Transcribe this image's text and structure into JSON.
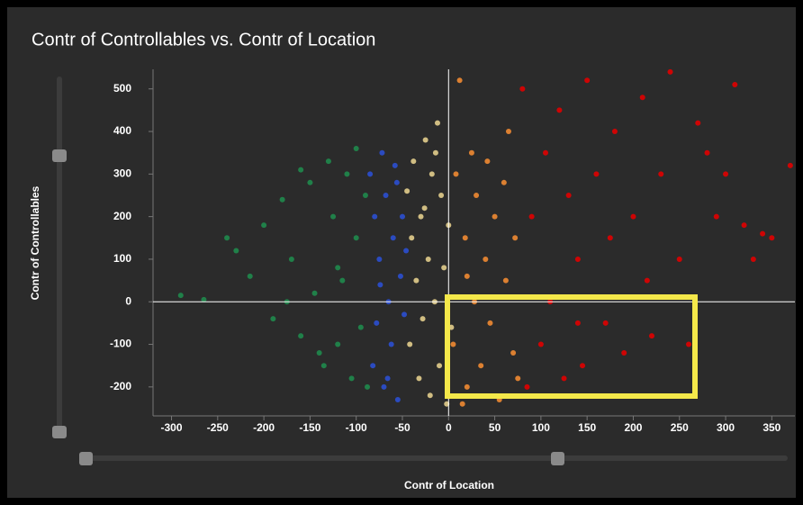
{
  "chart_data": {
    "type": "scatter",
    "title": "Contr of Controllables vs. Contr of Location",
    "x_label": "Contr of Location",
    "y_label": "Contr of Controllables",
    "xlim": [
      -320,
      375
    ],
    "ylim": [
      -268,
      546
    ],
    "xticks": [
      -300,
      -250,
      -200,
      -150,
      -100,
      -50,
      0,
      50,
      100,
      150,
      200,
      250,
      300,
      350
    ],
    "yticks": [
      -200,
      -100,
      0,
      100,
      200,
      300,
      400,
      500
    ],
    "series": [
      {
        "color": "#1f8a4c",
        "x": [
          -290,
          -265,
          -240,
          -230,
          -215,
          -200,
          -190,
          -180,
          -170,
          -160,
          -150,
          -145,
          -135,
          -130,
          -125,
          -120,
          -115,
          -110,
          -105,
          -100,
          -95,
          -90,
          -88,
          -140,
          -160,
          -175,
          -120,
          -100
        ],
        "y": [
          15,
          5,
          150,
          120,
          60,
          180,
          -40,
          240,
          100,
          -80,
          280,
          20,
          -150,
          330,
          200,
          -100,
          50,
          300,
          -180,
          150,
          -60,
          250,
          -200,
          -120,
          310,
          0,
          80,
          360
        ]
      },
      {
        "color": "#2b4fd0",
        "x": [
          -85,
          -82,
          -80,
          -78,
          -75,
          -72,
          -70,
          -68,
          -65,
          -62,
          -60,
          -58,
          -55,
          -52,
          -50,
          -48,
          -46,
          -66,
          -74,
          -56
        ],
        "y": [
          300,
          -150,
          200,
          -50,
          100,
          350,
          -200,
          250,
          0,
          -100,
          150,
          320,
          -230,
          60,
          200,
          -30,
          120,
          -180,
          40,
          280
        ]
      },
      {
        "color": "#e2cd8c",
        "x": [
          -45,
          -42,
          -40,
          -38,
          -35,
          -32,
          -30,
          -28,
          -25,
          -22,
          -20,
          -18,
          -15,
          -12,
          -10,
          -8,
          -5,
          -2,
          0,
          3,
          -14,
          -26
        ],
        "y": [
          260,
          -100,
          150,
          330,
          50,
          -180,
          200,
          -40,
          380,
          100,
          -220,
          300,
          0,
          420,
          -150,
          250,
          80,
          -240,
          180,
          -60,
          350,
          220
        ]
      },
      {
        "color": "#f08a32",
        "x": [
          5,
          8,
          12,
          15,
          18,
          20,
          25,
          28,
          30,
          35,
          40,
          42,
          45,
          50,
          55,
          60,
          62,
          65,
          70,
          72,
          75,
          20
        ],
        "y": [
          -100,
          300,
          520,
          -240,
          150,
          -200,
          350,
          0,
          250,
          -150,
          100,
          330,
          -50,
          200,
          -230,
          280,
          50,
          400,
          -120,
          150,
          -180,
          60
        ]
      },
      {
        "color": "#e00000",
        "x": [
          80,
          85,
          90,
          100,
          105,
          110,
          120,
          125,
          130,
          140,
          145,
          150,
          160,
          170,
          175,
          180,
          190,
          200,
          210,
          215,
          220,
          230,
          240,
          250,
          260,
          270,
          280,
          290,
          300,
          310,
          320,
          330,
          340,
          350,
          370,
          140
        ],
        "y": [
          500,
          -200,
          200,
          -100,
          350,
          0,
          450,
          -180,
          250,
          100,
          -150,
          520,
          300,
          -50,
          150,
          400,
          -120,
          200,
          480,
          50,
          -80,
          300,
          540,
          100,
          -100,
          420,
          350,
          200,
          300,
          510,
          180,
          100,
          160,
          150,
          320,
          -50
        ]
      }
    ]
  }
}
